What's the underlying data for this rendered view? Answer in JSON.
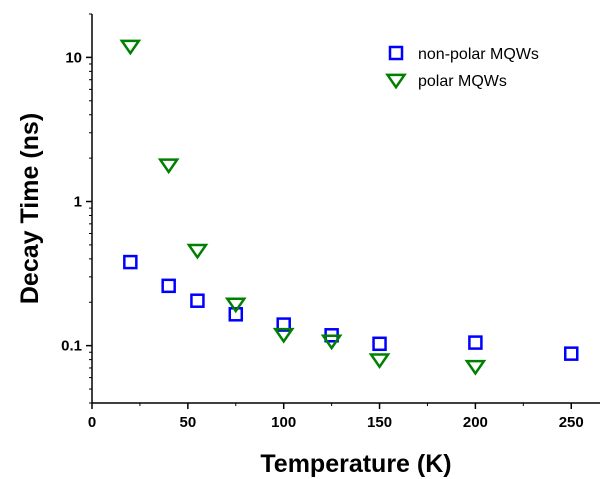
{
  "chart_data": {
    "type": "scatter",
    "title": "",
    "xlabel": "Temperature (K)",
    "ylabel": "Decay Time (ns)",
    "xlim": [
      0,
      265
    ],
    "ylim": [
      0.04,
      20
    ],
    "yscale": "log",
    "xticks": [
      0,
      50,
      100,
      150,
      200,
      250
    ],
    "xtick_labels": [
      "0",
      "50",
      "100",
      "150",
      "200",
      "250"
    ],
    "yticks": [
      0.1,
      1,
      10
    ],
    "ytick_labels": [
      "0.1",
      "1",
      "10"
    ],
    "grid": false,
    "legend_position": "top-right",
    "series": [
      {
        "name": "non-polar MQWs",
        "marker": "square",
        "color": "#0000ff",
        "x": [
          20,
          40,
          55,
          75,
          100,
          125,
          150,
          200,
          250
        ],
        "y": [
          0.38,
          0.26,
          0.205,
          0.165,
          0.14,
          0.118,
          0.103,
          0.105,
          0.088
        ]
      },
      {
        "name": "polar MQWs",
        "marker": "triangle-down",
        "color": "#008000",
        "x": [
          20,
          40,
          55,
          75,
          100,
          125,
          150,
          200
        ],
        "y": [
          12,
          1.8,
          0.46,
          0.195,
          0.12,
          0.108,
          0.08,
          0.072
        ]
      }
    ]
  }
}
